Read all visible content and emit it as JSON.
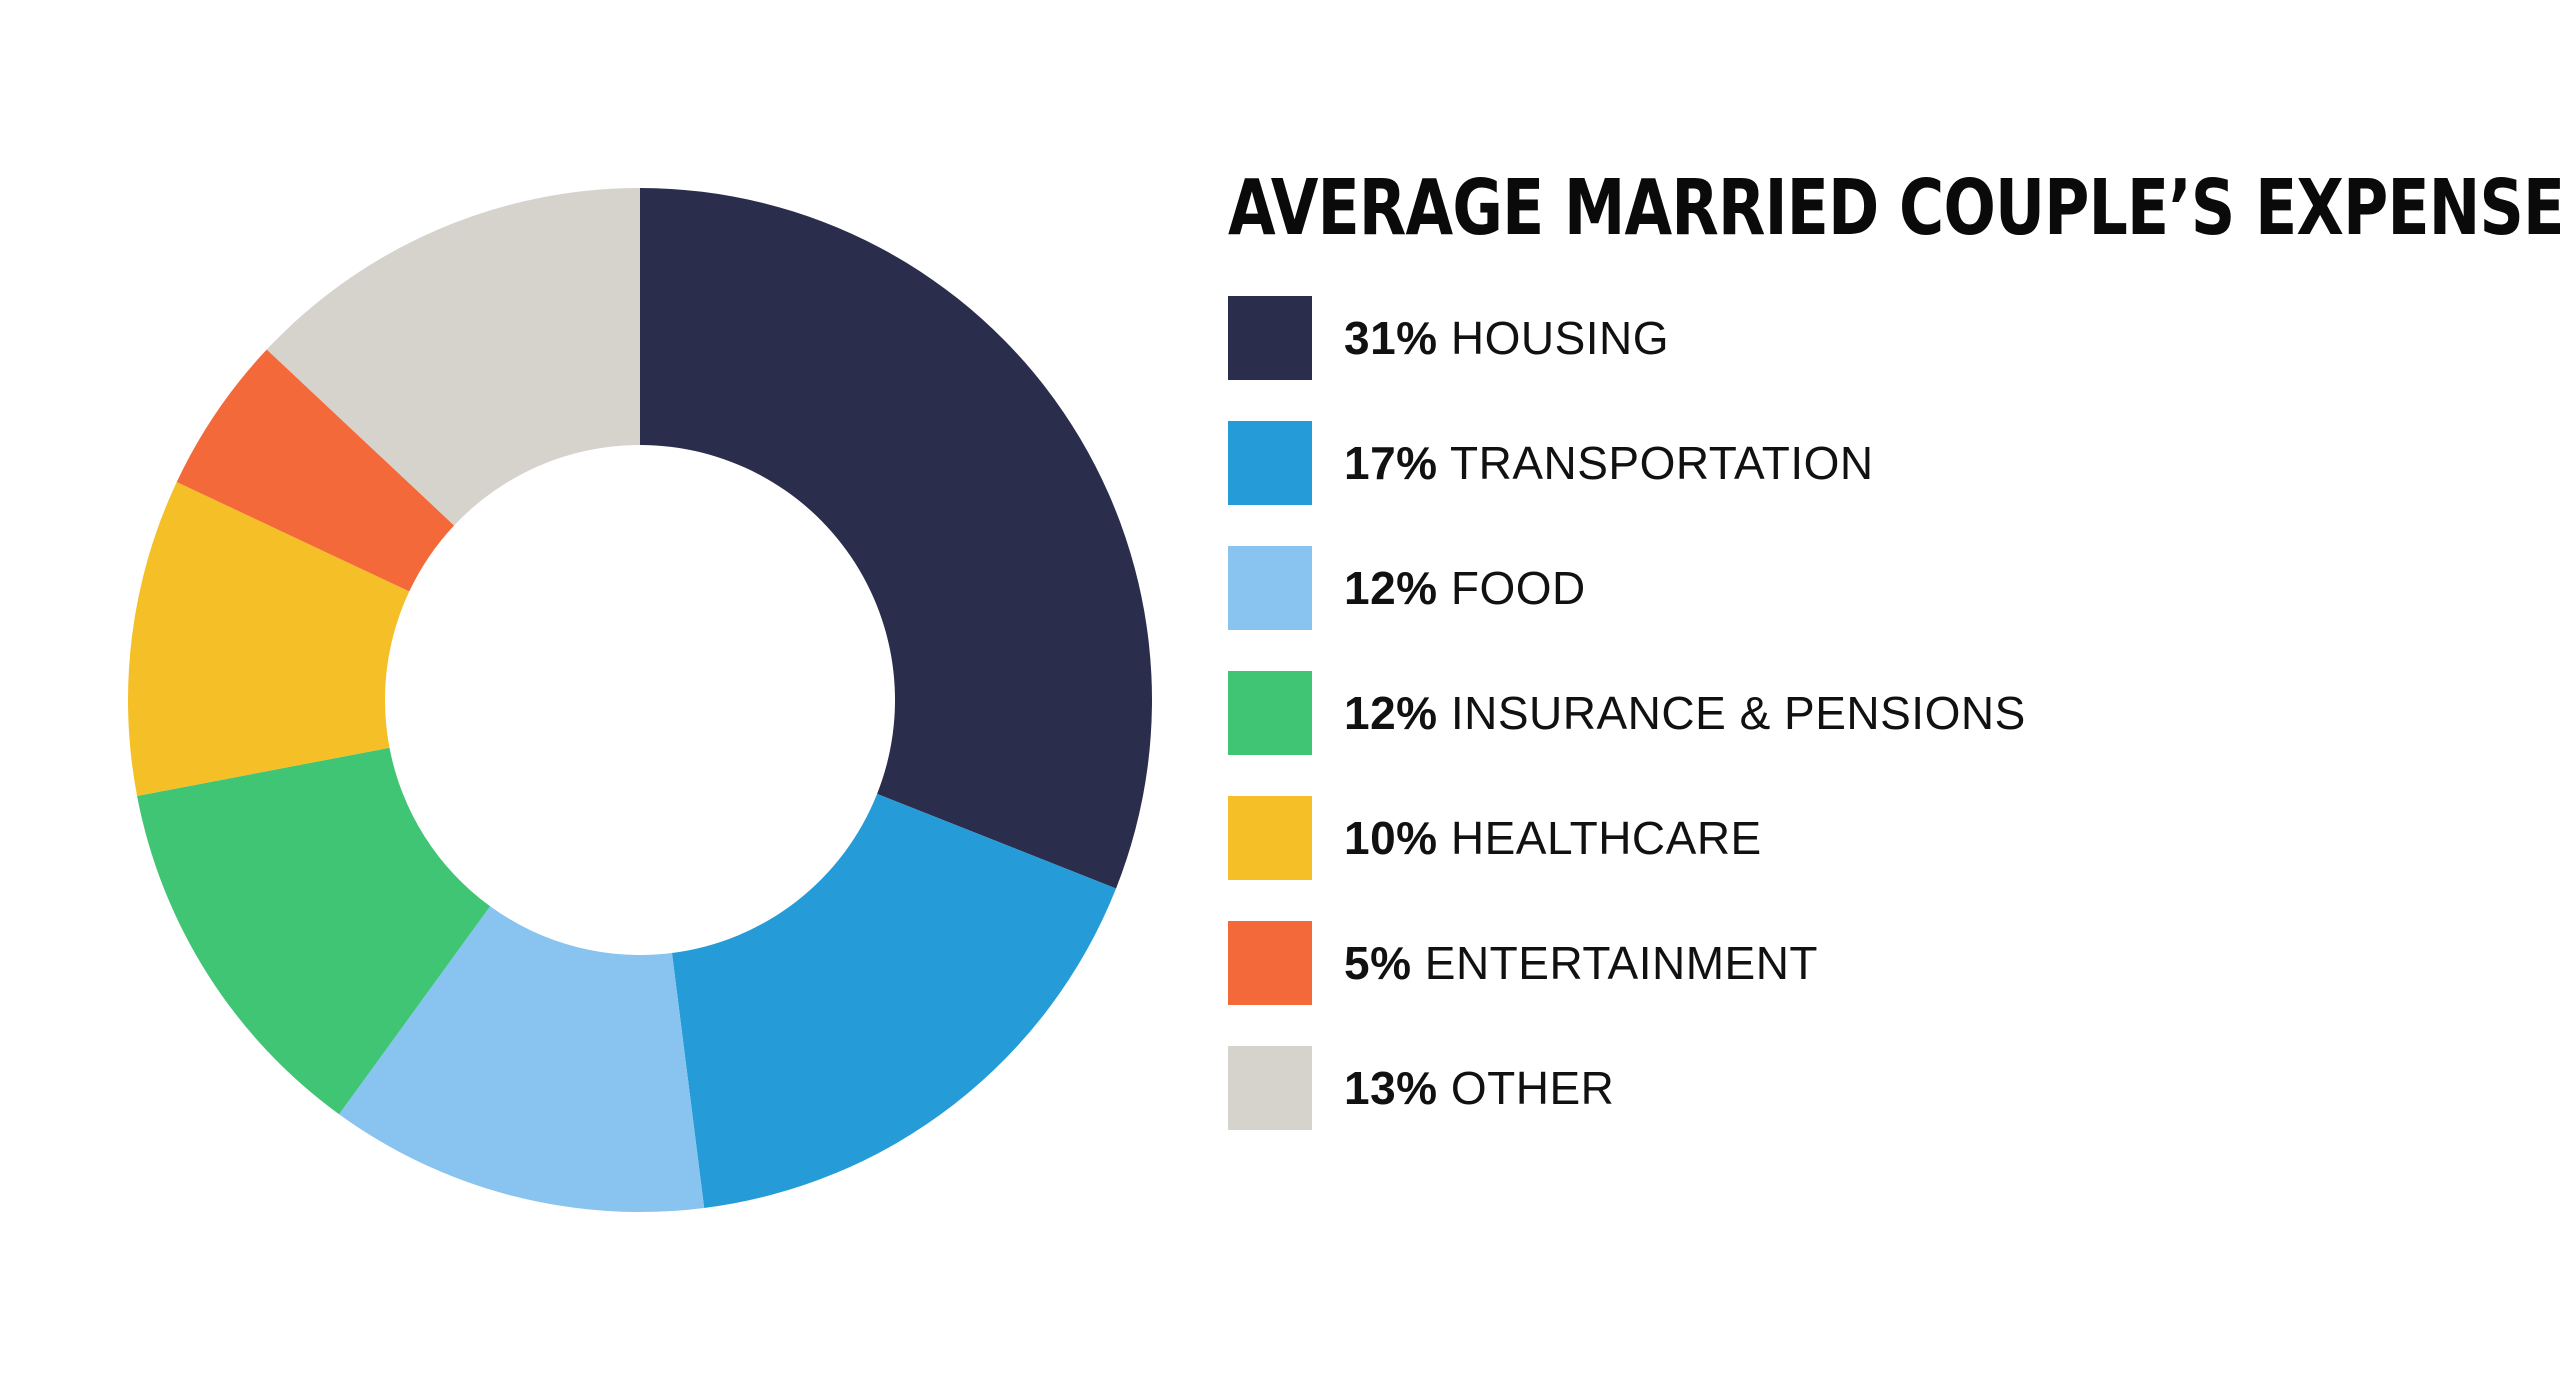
{
  "chart_data": {
    "type": "pie",
    "style": "donut",
    "title": "AVERAGE MARRIED COUPLE’S EXPENSES",
    "start": "top",
    "direction": "clockwise",
    "legend_position": "right",
    "slices": [
      {
        "label": "HOUSING",
        "percent_label": "31%",
        "value": 31,
        "color": "#2a2e4c"
      },
      {
        "label": "TRANSPORTATION",
        "percent_label": "17%",
        "value": 17,
        "color": "#259cd8"
      },
      {
        "label": "FOOD",
        "percent_label": "12%",
        "value": 12,
        "color": "#88c4ef"
      },
      {
        "label": "INSURANCE & PENSIONS",
        "percent_label": "12%",
        "value": 12,
        "color": "#3fc574"
      },
      {
        "label": "HEALTHCARE",
        "percent_label": "10%",
        "value": 10,
        "color": "#f5bf28"
      },
      {
        "label": "ENTERTAINMENT",
        "percent_label": "5%",
        "value": 5,
        "color": "#f4693a"
      },
      {
        "label": "OTHER",
        "percent_label": "13%",
        "value": 13,
        "color": "#d6d3cd"
      }
    ]
  }
}
